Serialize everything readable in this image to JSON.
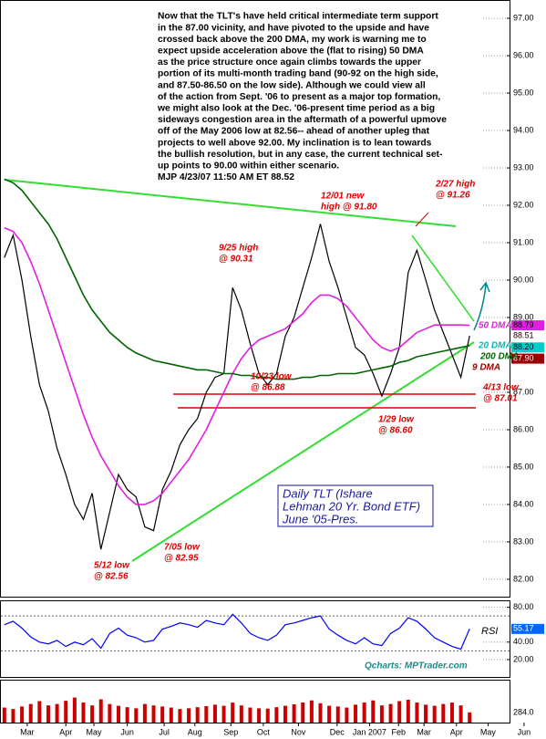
{
  "chart_data": [
    {
      "type": "line",
      "title": [
        "Daily TLT (Ishare",
        "Lehman 20 Yr. Bond ETF)",
        "June '05-Pres."
      ],
      "commentary": [
        "Now that the TLT's have held critical intermediate term support",
        "in the 87.00 vicinity, and have pivoted to the upside and have",
        "crossed back above the 200 DMA, my work is warning me to",
        "expect upside acceleration above the (flat to rising) 50 DMA",
        "as the price structure once again climbs towards the upper",
        "portion of its multi-month trading band (90-92 on the high side,",
        "and 87.50-86.50 on the low side).  Although we could view all",
        "of the action from Sept. '06 to present as a major top formation,",
        "we might also look at the Dec. '06-present time period as a big",
        "sideways congestion area in the aftermath of a powerful upmove",
        "off of the May 2006 low at 82.56-- ahead of another upleg that",
        "projects to well above 92.00. My inclination is to lean towards",
        "the bullish resolution, but in any case, the current technical set-",
        "up points to 90.00 within either scenario.",
        "MJP  4/23/07  11:50 AM ET 88.52"
      ],
      "x": [
        0,
        1,
        2,
        3,
        4,
        5,
        6,
        7,
        8,
        9,
        10,
        11,
        12,
        13,
        14,
        15,
        16,
        17,
        18,
        19,
        20,
        21,
        22,
        23,
        24,
        25,
        26,
        27,
        28,
        29,
        30,
        31,
        32,
        33,
        34,
        35,
        36,
        37,
        38,
        39,
        40,
        41,
        42,
        43,
        44,
        45,
        46,
        47,
        48,
        49,
        50,
        51,
        52,
        53
      ],
      "xlim": [
        -0.5,
        61.7
      ],
      "ylim": [
        81.51,
        97.49
      ],
      "yticks": [
        {
          "value": 97,
          "label": "97.00"
        },
        {
          "value": 96,
          "label": "96.00"
        },
        {
          "value": 95,
          "label": "95.00"
        },
        {
          "value": 94,
          "label": "94.00"
        },
        {
          "value": 93,
          "label": "93.00"
        },
        {
          "value": 92,
          "label": "92.00"
        },
        {
          "value": 91,
          "label": "91.00"
        },
        {
          "value": 90,
          "label": "90.00"
        },
        {
          "value": 89,
          "label": "89.00"
        },
        {
          "value": 87,
          "label": "87.00"
        },
        {
          "value": 86,
          "label": "86.00"
        },
        {
          "value": 85,
          "label": "85.00"
        },
        {
          "value": 84,
          "label": "84.00"
        },
        {
          "value": 83,
          "label": "83.00"
        },
        {
          "value": 82,
          "label": "82.00"
        }
      ],
      "series": [
        {
          "color": "#000000",
          "values": [
            90.6,
            91.2,
            90.0,
            88.5,
            87.2,
            86.5,
            85.5,
            84.8,
            84.0,
            83.6,
            84.3,
            82.8,
            83.8,
            84.8,
            84.4,
            84.2,
            83.4,
            83.3,
            84.4,
            84.9,
            85.6,
            86.0,
            86.3,
            87.0,
            87.4,
            87.5,
            89.8,
            89.2,
            88.3,
            87.5,
            87.2,
            87.5,
            88.5,
            89.0,
            89.8,
            90.6,
            91.5,
            90.5,
            89.8,
            89.0,
            88.2,
            88.0,
            87.5,
            86.9,
            87.5,
            88.2,
            90.2,
            90.8,
            90.0,
            89.2,
            88.6,
            88.0,
            87.4,
            88.51
          ]
        },
        {
          "name": "50 DMA",
          "color": "#e020e0",
          "values": [
            91.4,
            91.3,
            91.0,
            90.5,
            89.9,
            89.2,
            88.5,
            87.8,
            87.1,
            86.4,
            85.8,
            85.3,
            84.9,
            84.5,
            84.2,
            84.0,
            84.0,
            84.1,
            84.3,
            84.6,
            84.9,
            85.2,
            85.6,
            86.0,
            86.5,
            87.0,
            87.5,
            87.9,
            88.2,
            88.4,
            88.5,
            88.6,
            88.7,
            88.9,
            89.1,
            89.4,
            89.6,
            89.6,
            89.5,
            89.3,
            89.0,
            88.7,
            88.4,
            88.2,
            88.1,
            88.2,
            88.4,
            88.6,
            88.7,
            88.8,
            88.8,
            88.8,
            88.8,
            88.79
          ]
        },
        {
          "name": "200 DMA",
          "color": "#006400",
          "values": [
            92.7,
            92.6,
            92.4,
            92.1,
            91.8,
            91.5,
            91.1,
            90.6,
            90.1,
            89.6,
            89.2,
            88.9,
            88.6,
            88.4,
            88.2,
            88.05,
            87.95,
            87.85,
            87.8,
            87.75,
            87.7,
            87.65,
            87.6,
            87.6,
            87.55,
            87.5,
            87.5,
            87.45,
            87.45,
            87.4,
            87.4,
            87.35,
            87.35,
            87.35,
            87.4,
            87.4,
            87.45,
            87.45,
            87.5,
            87.5,
            87.5,
            87.55,
            87.6,
            87.65,
            87.7,
            87.8,
            87.85,
            87.95,
            88.0,
            88.05,
            88.1,
            88.15,
            88.2,
            88.25
          ]
        }
      ],
      "ma_labels": [
        {
          "text": "20 DMA",
          "color": "#00bbbb"
        },
        {
          "text": "9 DMA",
          "color": "#990000"
        }
      ],
      "price_labels": [
        {
          "value": 88.79,
          "label": "88.79",
          "color": "#e020e0",
          "text_color": "#000000"
        },
        {
          "value": 88.51,
          "label": "88.51",
          "color": "#ffffff",
          "text_color": "#000000"
        },
        {
          "value": 88.2,
          "label": "88.20",
          "color": "#00cccc",
          "text_color": "#000000"
        },
        {
          "value": 87.9,
          "label": "87.90",
          "color": "#990000",
          "text_color": "#ffffff"
        }
      ],
      "annotation_color": "#dd0000",
      "annotations": [
        {
          "lines": [
            "12/01 new",
            "high @ 91.80"
          ]
        },
        {
          "lines": [
            "2/27 high",
            "@ 91.26"
          ]
        },
        {
          "lines": [
            "9/25 high",
            "@ 90.31"
          ]
        },
        {
          "lines": [
            "10/23 low",
            "@ 86.88"
          ]
        },
        {
          "lines": [
            "1/29 low",
            "@ 86.60"
          ]
        },
        {
          "lines": [
            "4/13 low",
            "@ 87.01"
          ]
        },
        {
          "lines": [
            "7/05 low",
            "@ 82.95"
          ]
        },
        {
          "lines": [
            "5/12 low",
            "@ 82.56"
          ]
        }
      ]
    },
    {
      "type": "line",
      "label": "RSI",
      "source": "Qcharts: MPTrader.com",
      "x": [
        0,
        1,
        2,
        3,
        4,
        5,
        6,
        7,
        8,
        9,
        10,
        11,
        12,
        13,
        14,
        15,
        16,
        17,
        18,
        19,
        20,
        21,
        22,
        23,
        24,
        25,
        26,
        27,
        28,
        29,
        30,
        31,
        32,
        33,
        34,
        35,
        36,
        37,
        38,
        39,
        40,
        41,
        42,
        43,
        44,
        45,
        46,
        47,
        48,
        49,
        50,
        51,
        52,
        53
      ],
      "xlim": [
        -0.5,
        61.7
      ],
      "ylim": [
        0,
        88
      ],
      "yticks": [
        {
          "value": 80,
          "label": "80.00"
        },
        {
          "value": 40,
          "label": "40.00"
        },
        {
          "value": 20,
          "label": "20.00"
        }
      ],
      "levels": [
        70,
        30
      ],
      "series": [
        {
          "color": "#0000ff",
          "values": [
            60,
            64,
            56,
            46,
            40,
            38,
            42,
            35,
            40,
            37,
            44,
            33,
            50,
            56,
            48,
            45,
            40,
            42,
            55,
            58,
            62,
            60,
            57,
            65,
            62,
            60,
            72,
            62,
            50,
            45,
            42,
            48,
            60,
            62,
            65,
            68,
            70,
            55,
            48,
            42,
            38,
            45,
            38,
            36,
            50,
            56,
            68,
            64,
            55,
            45,
            40,
            35,
            32,
            55.17
          ]
        }
      ],
      "last_label": {
        "value": 55.17,
        "label": "55.17",
        "color": "#0066ff"
      }
    },
    {
      "type": "bar",
      "x": [
        0,
        1,
        2,
        3,
        4,
        5,
        6,
        7,
        8,
        9,
        10,
        11,
        12,
        13,
        14,
        15,
        16,
        17,
        18,
        19,
        20,
        21,
        22,
        23,
        24,
        25,
        26,
        27,
        28,
        29,
        30,
        31,
        32,
        33,
        34,
        35,
        36,
        37,
        38,
        39,
        40,
        41,
        42,
        43,
        44,
        45,
        46,
        47,
        48,
        49,
        50,
        51,
        52,
        53
      ],
      "xlim": [
        -0.5,
        61.7
      ],
      "ylim": [
        0,
        1200
      ],
      "color": "#cc0000",
      "values": [
        420,
        380,
        450,
        520,
        600,
        480,
        520,
        610,
        700,
        560,
        480,
        650,
        520,
        470,
        430,
        400,
        520,
        480,
        450,
        420,
        380,
        400,
        430,
        460,
        500,
        470,
        560,
        480,
        420,
        400,
        390,
        430,
        470,
        510,
        560,
        620,
        540,
        470,
        450,
        420,
        500,
        560,
        620,
        480,
        520,
        600,
        640,
        560,
        500,
        470,
        520,
        560,
        480,
        284
      ],
      "last_label": {
        "value": 284,
        "label": "284.0"
      },
      "xticks": [
        {
          "value": 2.6,
          "label": "Mar"
        },
        {
          "value": 7.0,
          "label": "Apr"
        },
        {
          "value": 10.2,
          "label": "May"
        },
        {
          "value": 14.0,
          "label": "Jun"
        },
        {
          "value": 18.2,
          "label": "Jul"
        },
        {
          "value": 21.7,
          "label": "Aug"
        },
        {
          "value": 25.8,
          "label": "Sep"
        },
        {
          "value": 29.5,
          "label": "Oct"
        },
        {
          "value": 33.5,
          "label": "Nov"
        },
        {
          "value": 37.9,
          "label": "Dec"
        },
        {
          "value": 41.6,
          "label": "Jan 2007"
        },
        {
          "value": 44.9,
          "label": "Feb"
        },
        {
          "value": 47.8,
          "label": "Mar"
        },
        {
          "value": 51.5,
          "label": "Apr"
        },
        {
          "value": 55.1,
          "label": "May"
        },
        {
          "value": 59.2,
          "label": "Jun"
        }
      ]
    }
  ]
}
